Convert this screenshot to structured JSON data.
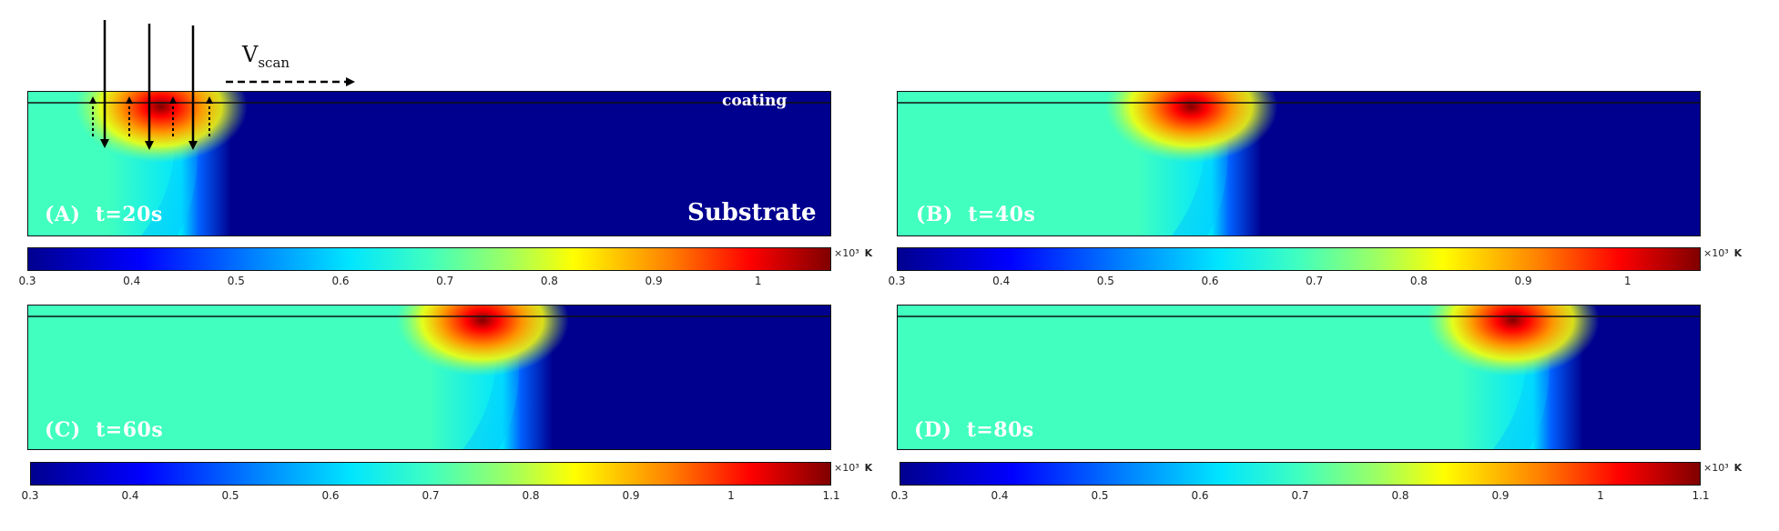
{
  "vscan_label": "V",
  "vscan_subscript": "scan",
  "coating_label": "coating",
  "substrate_label": "Substrate",
  "panels": [
    {
      "id": "A",
      "label": "(A)  t=20s",
      "hot_x_fraction": 0.19
    },
    {
      "id": "B",
      "label": "(B)  t=40s",
      "hot_x_fraction": 0.39
    },
    {
      "id": "C",
      "label": "(C)  t=60s",
      "hot_x_fraction": 0.59
    },
    {
      "id": "D",
      "label": "(D)  t=80s",
      "hot_x_fraction": 0.79
    }
  ],
  "colorbars": [
    {
      "ticks": [
        "0.3",
        "0.4",
        "0.5",
        "0.6",
        "0.7",
        "0.8",
        "0.9",
        "1"
      ],
      "max_value": 1.07
    },
    {
      "ticks": [
        "0.3",
        "0.4",
        "0.5",
        "0.6",
        "0.7",
        "0.8",
        "0.9",
        "1"
      ],
      "max_value": 1.07
    },
    {
      "ticks": [
        "0.3",
        "0.4",
        "0.5",
        "0.6",
        "0.7",
        "0.8",
        "0.9",
        "1",
        "1.1"
      ],
      "max_value": 1.1
    },
    {
      "ticks": [
        "0.3",
        "0.4",
        "0.5",
        "0.6",
        "0.7",
        "0.8",
        "0.9",
        "1",
        "1.1"
      ],
      "max_value": 1.1
    }
  ],
  "colorbar_unit": "×10³",
  "colorbar_unit_symbol": "K",
  "colorbar_min_value": 0.3,
  "colors": {
    "cold": "#00008f",
    "cyan": "#00e5ff",
    "green": "#40ffbf",
    "yellow": "#ffff00",
    "red": "#ff0000",
    "dark_red": "#800000"
  }
}
